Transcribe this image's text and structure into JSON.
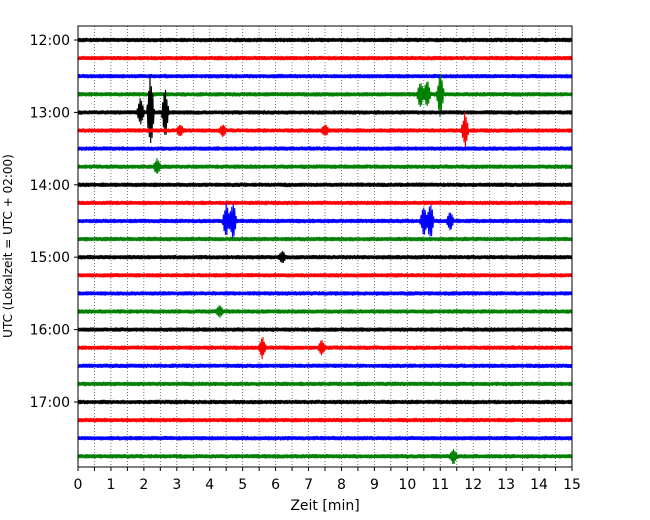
{
  "chart_data": {
    "type": "line",
    "title": "",
    "xlabel": "Zeit  [min]",
    "ylabel": "UTC (Lokalzeit = UTC + 02:00)",
    "xlim": [
      0,
      15
    ],
    "x_ticks": [
      "0",
      "0.5",
      "1",
      "1.5",
      "2",
      "2.5",
      "3",
      "3.5",
      "4",
      "4.5",
      "5",
      "5.5",
      "6",
      "6.5",
      "7",
      "7.5",
      "8",
      "8.5",
      "9",
      "9.5",
      "10",
      "10.5",
      "11",
      "11.5",
      "12",
      "12.5",
      "13",
      "13.5",
      "14",
      "14.5",
      "15"
    ],
    "y_ticks": [
      {
        "label": "12:00",
        "trace": 0
      },
      {
        "label": "13:00",
        "trace": 4
      },
      {
        "label": "14:00",
        "trace": 8
      },
      {
        "label": "15:00",
        "trace": 12
      },
      {
        "label": "16:00",
        "trace": 16
      },
      {
        "label": "17:00",
        "trace": 20
      }
    ],
    "grid": "vertical dotted",
    "colors": [
      "#000000",
      "#ff0000",
      "#0000ff",
      "#008000"
    ],
    "trace_count": 24,
    "trace_interval_min": 15,
    "events": [
      {
        "trace": 3,
        "t": 10.4,
        "amp": 0.8
      },
      {
        "trace": 3,
        "t": 10.6,
        "amp": 0.8
      },
      {
        "trace": 3,
        "t": 11.0,
        "amp": 1.3
      },
      {
        "trace": 4,
        "t": 1.9,
        "amp": 0.8
      },
      {
        "trace": 4,
        "t": 2.2,
        "amp": 2.4
      },
      {
        "trace": 4,
        "t": 2.65,
        "amp": 1.5
      },
      {
        "trace": 5,
        "t": 3.1,
        "amp": 0.3
      },
      {
        "trace": 5,
        "t": 4.4,
        "amp": 0.3
      },
      {
        "trace": 5,
        "t": 7.5,
        "amp": 0.3
      },
      {
        "trace": 5,
        "t": 11.75,
        "amp": 1.0
      },
      {
        "trace": 7,
        "t": 2.4,
        "amp": 0.4
      },
      {
        "trace": 10,
        "t": 4.5,
        "amp": 1.0
      },
      {
        "trace": 10,
        "t": 4.7,
        "amp": 1.2
      },
      {
        "trace": 10,
        "t": 10.5,
        "amp": 0.8
      },
      {
        "trace": 10,
        "t": 10.7,
        "amp": 1.1
      },
      {
        "trace": 10,
        "t": 11.3,
        "amp": 0.5
      },
      {
        "trace": 12,
        "t": 6.2,
        "amp": 0.3
      },
      {
        "trace": 15,
        "t": 4.3,
        "amp": 0.3
      },
      {
        "trace": 17,
        "t": 5.6,
        "amp": 0.6
      },
      {
        "trace": 17,
        "t": 7.4,
        "amp": 0.4
      },
      {
        "trace": 23,
        "t": 11.4,
        "amp": 0.4
      }
    ]
  }
}
